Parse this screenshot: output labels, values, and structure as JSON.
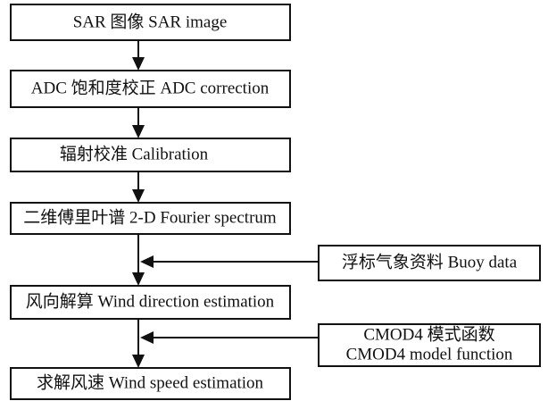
{
  "nodes": [
    {
      "label": "SAR 图像 SAR image"
    },
    {
      "label": "ADC 饱和度校正 ADC correction"
    },
    {
      "label": "辐射校准 Calibration"
    },
    {
      "label": "二维傅里叶谱 2-D Fourier spectrum"
    },
    {
      "label": "风向解算 Wind direction estimation"
    },
    {
      "label": "求解风速 Wind speed estimation"
    }
  ],
  "inputs": [
    {
      "lines": [
        "浮标气象资料 Buoy data"
      ]
    },
    {
      "lines": [
        "CMOD4 模式函数",
        "CMOD4 model function"
      ]
    }
  ]
}
